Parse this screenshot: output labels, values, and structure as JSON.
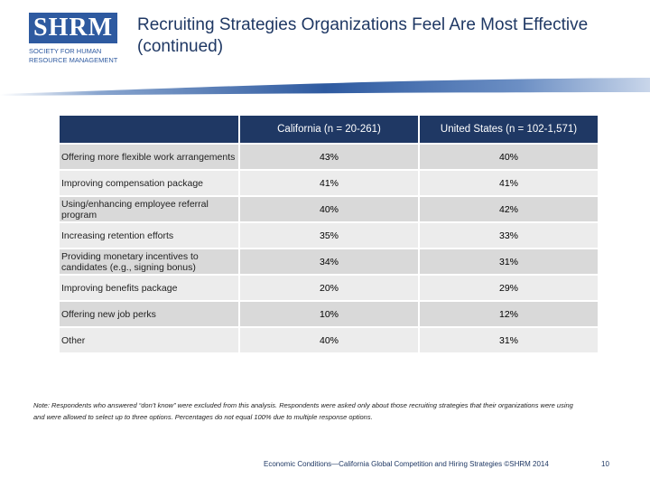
{
  "logo": {
    "mark": "SHRM",
    "line1": "SOCIETY FOR HUMAN",
    "line2": "RESOURCE MANAGEMENT"
  },
  "header": {
    "title": "Recruiting Strategies Organizations Feel Are Most Effective (continued)"
  },
  "table": {
    "columns": [
      "California (n = 20-261)",
      "United States (n = 102-1,571)"
    ],
    "rows": [
      [
        "Offering more flexible work arrangements",
        "43%",
        "40%"
      ],
      [
        "Improving compensation package",
        "41%",
        "41%"
      ],
      [
        "Using/enhancing employee referral program",
        "40%",
        "42%"
      ],
      [
        "Increasing retention efforts",
        "35%",
        "33%"
      ],
      [
        "Providing monetary incentives to candidates (e.g., signing bonus)",
        "34%",
        "31%"
      ],
      [
        "Improving benefits package",
        "20%",
        "29%"
      ],
      [
        "Offering new job perks",
        "10%",
        "12%"
      ],
      [
        "Other",
        "40%",
        "31%"
      ]
    ]
  },
  "note": "Note: Respondents who answered “don’t know” were excluded from this analysis. Respondents were asked only about those recruiting strategies that their organizations were using and were allowed to select up to three options. Percentages do not equal 100% due to multiple response options.",
  "footer": {
    "source": "Economic Conditions—California Global Competition and Hiring Strategies ©SHRM 2014",
    "page": "10"
  }
}
